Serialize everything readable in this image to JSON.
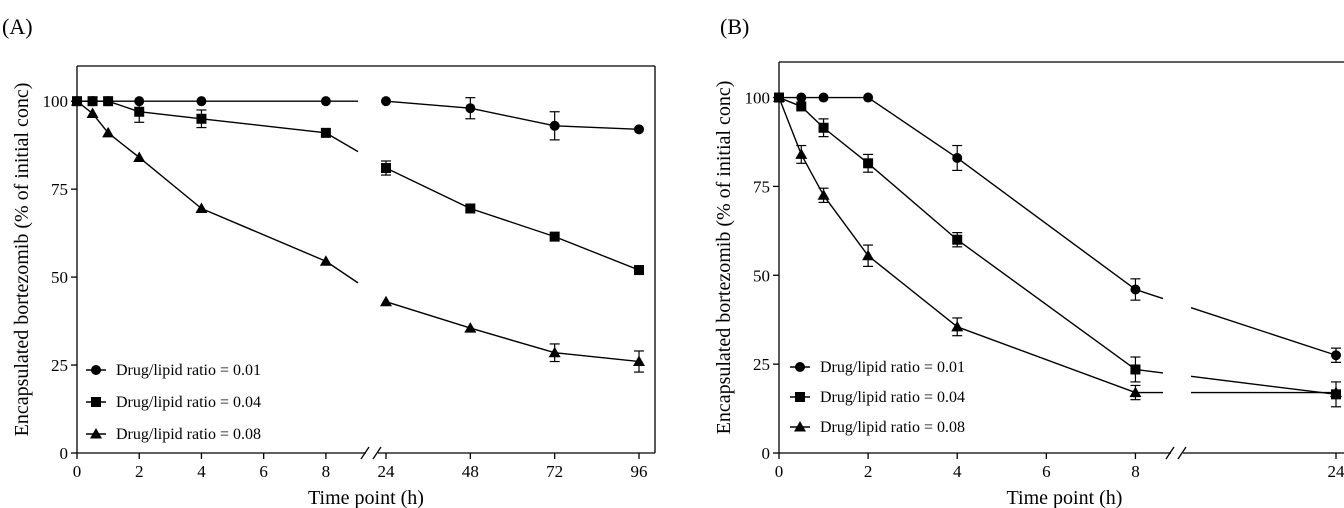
{
  "chart_data": [
    {
      "panel_label": "(A)",
      "type": "line",
      "xlabel": "Time point (h)",
      "ylabel": "Encapsulated bortezomib (% of initial conc)",
      "ylim": [
        0,
        110
      ],
      "yticks": [
        0,
        25,
        50,
        75,
        100
      ],
      "xticks": [
        0,
        2,
        4,
        6,
        8,
        24,
        48,
        72,
        96
      ],
      "x_axis_broken": true,
      "x_break_between": [
        8,
        24
      ],
      "legend_position": "bottom-left",
      "series": [
        {
          "name": "Drug/lipid ratio = 0.01",
          "marker": "circle",
          "points": [
            {
              "x": 0,
              "y": 100
            },
            {
              "x": 0.5,
              "y": 100
            },
            {
              "x": 1,
              "y": 100
            },
            {
              "x": 2,
              "y": 100
            },
            {
              "x": 4,
              "y": 100
            },
            {
              "x": 8,
              "y": 100
            },
            {
              "x": 24,
              "y": 100
            },
            {
              "x": 48,
              "y": 98,
              "err": 3
            },
            {
              "x": 72,
              "y": 93,
              "err": 4
            },
            {
              "x": 96,
              "y": 92
            }
          ]
        },
        {
          "name": "Drug/lipid ratio = 0.04",
          "marker": "square",
          "points": [
            {
              "x": 0,
              "y": 100
            },
            {
              "x": 0.5,
              "y": 100
            },
            {
              "x": 1,
              "y": 100
            },
            {
              "x": 2,
              "y": 97,
              "err": 3
            },
            {
              "x": 4,
              "y": 95,
              "err": 2.5
            },
            {
              "x": 8,
              "y": 91
            },
            {
              "x": 24,
              "y": 81,
              "err": 2
            },
            {
              "x": 48,
              "y": 69.5
            },
            {
              "x": 72,
              "y": 61.5
            },
            {
              "x": 96,
              "y": 52
            }
          ]
        },
        {
          "name": "Drug/lipid ratio = 0.08",
          "marker": "triangle",
          "points": [
            {
              "x": 0,
              "y": 100
            },
            {
              "x": 0.5,
              "y": 96.5
            },
            {
              "x": 1,
              "y": 91
            },
            {
              "x": 2,
              "y": 84
            },
            {
              "x": 4,
              "y": 69.5
            },
            {
              "x": 8,
              "y": 54.5
            },
            {
              "x": 24,
              "y": 43
            },
            {
              "x": 48,
              "y": 35.5
            },
            {
              "x": 72,
              "y": 28.5,
              "err": 2.5
            },
            {
              "x": 96,
              "y": 26,
              "err": 3
            }
          ]
        }
      ]
    },
    {
      "panel_label": "(B)",
      "type": "line",
      "xlabel": "Time point (h)",
      "ylabel": "Encapsulated bortezomib (% of initial conc)",
      "ylim": [
        0,
        110
      ],
      "yticks": [
        0,
        25,
        50,
        75,
        100
      ],
      "xticks": [
        0,
        2,
        4,
        6,
        8,
        24
      ],
      "x_axis_broken": true,
      "x_break_between": [
        8,
        24
      ],
      "legend_position": "bottom-left",
      "series": [
        {
          "name": "Drug/lipid ratio = 0.01",
          "marker": "circle",
          "points": [
            {
              "x": 0,
              "y": 100
            },
            {
              "x": 0.5,
              "y": 100
            },
            {
              "x": 1,
              "y": 100
            },
            {
              "x": 2,
              "y": 100
            },
            {
              "x": 4,
              "y": 83,
              "err": 3.5
            },
            {
              "x": 8,
              "y": 46,
              "err": 3
            },
            {
              "x": 24,
              "y": 27.5,
              "err": 2
            }
          ]
        },
        {
          "name": "Drug/lipid ratio = 0.04",
          "marker": "square",
          "points": [
            {
              "x": 0,
              "y": 100
            },
            {
              "x": 0.5,
              "y": 97.5
            },
            {
              "x": 1,
              "y": 91.5,
              "err": 2.5
            },
            {
              "x": 2,
              "y": 81.5,
              "err": 2.5
            },
            {
              "x": 4,
              "y": 60,
              "err": 2
            },
            {
              "x": 8,
              "y": 23.5,
              "err": 3.5
            },
            {
              "x": 24,
              "y": 16.5,
              "err": 3.5
            }
          ]
        },
        {
          "name": "Drug/lipid ratio = 0.08",
          "marker": "triangle",
          "points": [
            {
              "x": 0,
              "y": 100
            },
            {
              "x": 0.5,
              "y": 84,
              "err": 2.5
            },
            {
              "x": 1,
              "y": 72.5,
              "err": 2
            },
            {
              "x": 2,
              "y": 55.5,
              "err": 3
            },
            {
              "x": 4,
              "y": 35.5,
              "err": 2.5
            },
            {
              "x": 8,
              "y": 17,
              "err": 2
            },
            {
              "x": 24,
              "y": 17
            }
          ]
        }
      ]
    }
  ]
}
